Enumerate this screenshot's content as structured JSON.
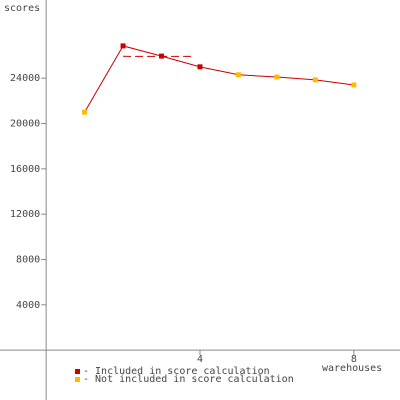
{
  "chart_data": {
    "type": "line",
    "y_label": "scores",
    "x_label": "warehouses",
    "x": [
      1,
      2,
      3,
      4,
      5,
      6,
      7,
      8
    ],
    "values": [
      21000,
      26850,
      25950,
      25000,
      24300,
      24100,
      23850,
      23400
    ],
    "line_color": "#cc0000",
    "point_colors": [
      "#ffbb00",
      "#cc0000",
      "#cc0000",
      "#cc0000",
      "#ffbb00",
      "#ffbb00",
      "#ffbb00",
      "#ffbb00"
    ],
    "score_line": {
      "value": 25930,
      "from": 2,
      "to": 3.85
    },
    "legend": [
      {
        "label": "- Included in score calculation",
        "color": "#cc0000"
      },
      {
        "label": "- Not included in score calculation",
        "color": "#ffbb00"
      }
    ],
    "xlim": [
      -1.2,
      9.2
    ],
    "ylim": [
      -4400,
      30900
    ],
    "xticks": [
      4,
      8
    ],
    "yticks": [
      4000,
      8000,
      12000,
      16000,
      20000,
      24000
    ]
  }
}
